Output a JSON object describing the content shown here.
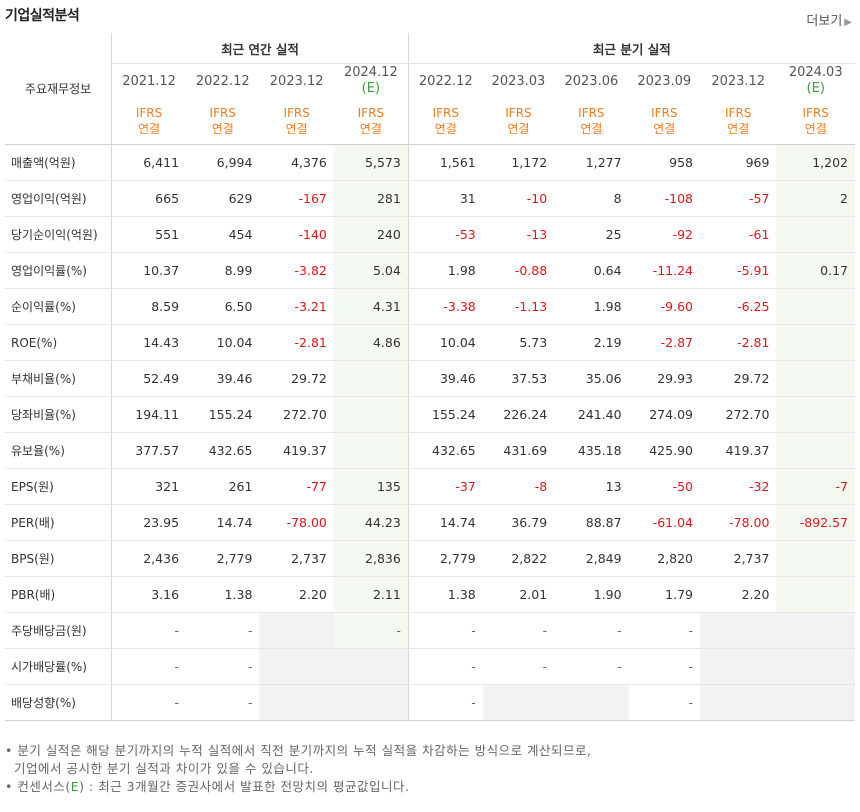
{
  "header": {
    "title": "기업실적분석",
    "more_label": "더보기",
    "more_arrow": "▶"
  },
  "table": {
    "label_header": "주요재무정보",
    "annual_title": "최근 연간 실적",
    "quarter_title": "최근 분기 실적",
    "ifrs_line1": "IFRS",
    "ifrs_line2": "연결",
    "estimate_mark": "(E)",
    "annual_periods": [
      "2021.12",
      "2022.12",
      "2023.12",
      "2024.12"
    ],
    "quarter_periods": [
      "2022.12",
      "2023.03",
      "2023.06",
      "2023.09",
      "2023.12",
      "2024.03"
    ],
    "estimate_columns": [
      3,
      9
    ],
    "rows": [
      {
        "label": "매출액(억원)",
        "values": [
          "6,411",
          "6,994",
          "4,376",
          "5,573",
          "1,561",
          "1,172",
          "1,277",
          "958",
          "969",
          "1,202"
        ]
      },
      {
        "label": "영업이익(억원)",
        "values": [
          "665",
          "629",
          "-167",
          "281",
          "31",
          "-10",
          "8",
          "-108",
          "-57",
          "2"
        ]
      },
      {
        "label": "당기순이익(억원)",
        "values": [
          "551",
          "454",
          "-140",
          "240",
          "-53",
          "-13",
          "25",
          "-92",
          "-61",
          ""
        ]
      },
      {
        "label": "영업이익률(%)",
        "values": [
          "10.37",
          "8.99",
          "-3.82",
          "5.04",
          "1.98",
          "-0.88",
          "0.64",
          "-11.24",
          "-5.91",
          "0.17"
        ]
      },
      {
        "label": "순이익률(%)",
        "values": [
          "8.59",
          "6.50",
          "-3.21",
          "4.31",
          "-3.38",
          "-1.13",
          "1.98",
          "-9.60",
          "-6.25",
          ""
        ]
      },
      {
        "label": "ROE(%)",
        "values": [
          "14.43",
          "10.04",
          "-2.81",
          "4.86",
          "10.04",
          "5.73",
          "2.19",
          "-2.87",
          "-2.81",
          ""
        ]
      },
      {
        "label": "부채비율(%)",
        "values": [
          "52.49",
          "39.46",
          "29.72",
          "",
          "39.46",
          "37.53",
          "35.06",
          "29.93",
          "29.72",
          ""
        ]
      },
      {
        "label": "당좌비율(%)",
        "values": [
          "194.11",
          "155.24",
          "272.70",
          "",
          "155.24",
          "226.24",
          "241.40",
          "274.09",
          "272.70",
          ""
        ]
      },
      {
        "label": "유보율(%)",
        "values": [
          "377.57",
          "432.65",
          "419.37",
          "",
          "432.65",
          "431.69",
          "435.18",
          "425.90",
          "419.37",
          ""
        ]
      },
      {
        "label": "EPS(원)",
        "values": [
          "321",
          "261",
          "-77",
          "135",
          "-37",
          "-8",
          "13",
          "-50",
          "-32",
          "-7"
        ]
      },
      {
        "label": "PER(배)",
        "values": [
          "23.95",
          "14.74",
          "-78.00",
          "44.23",
          "14.74",
          "36.79",
          "88.87",
          "-61.04",
          "-78.00",
          "-892.57"
        ]
      },
      {
        "label": "BPS(원)",
        "values": [
          "2,436",
          "2,779",
          "2,737",
          "2,836",
          "2,779",
          "2,822",
          "2,849",
          "2,820",
          "2,737",
          ""
        ]
      },
      {
        "label": "PBR(배)",
        "values": [
          "3.16",
          "1.38",
          "2.20",
          "2.11",
          "1.38",
          "2.01",
          "1.90",
          "1.79",
          "2.20",
          ""
        ]
      },
      {
        "label": "주당배당금(원)",
        "values": [
          "-",
          "-",
          "",
          "-",
          "-",
          "-",
          "-",
          "-",
          "",
          ""
        ],
        "gray": [
          2,
          8,
          9
        ]
      },
      {
        "label": "시가배당률(%)",
        "values": [
          "-",
          "-",
          "",
          "",
          "-",
          "-",
          "-",
          "-",
          "",
          ""
        ],
        "gray": [
          2,
          3,
          8,
          9
        ]
      },
      {
        "label": "배당성향(%)",
        "values": [
          "-",
          "-",
          "",
          "",
          "-",
          "",
          "",
          "-",
          "",
          ""
        ],
        "gray": [
          2,
          3,
          5,
          6,
          8,
          9
        ]
      }
    ],
    "group_starts": [
      3,
      6,
      9,
      13
    ]
  },
  "notes": {
    "line1": "분기 실적은 해당 분기까지의 누적 실적에서 직전 분기까지의 누적 실적을 차감하는 방식으로 계산되므로,",
    "line2": "기업에서 공시한 분기 실적과 차이가 있을 수 있습니다.",
    "line3_pre": "컨센서스(",
    "line3_e": "E",
    "line3_post": ") : 최근 3개월간 증권사에서 발표한 전망치의 평균값입니다."
  },
  "colors": {
    "negative": "#e0161e",
    "ifrs": "#ef7c1e",
    "estimate_bg": "#f3f9f1",
    "estimate_text": "#3d9d3d",
    "na_bg": "#f2f2f2"
  }
}
